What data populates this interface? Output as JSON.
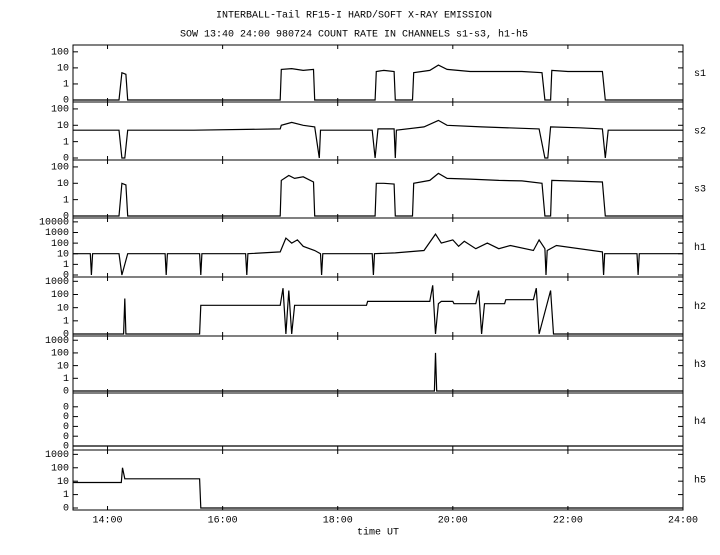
{
  "chart_data": [
    {
      "type": "line",
      "title": "INTERBALL-Tail RF15-I HARD/SOFT X-RAY EMISSION",
      "subtitle": "SOW 13:40 24:00 980724  COUNT RATE IN CHANNELS s1-s3, h1-h5",
      "name": "s1",
      "log": true,
      "color": "#000000",
      "xlim": [
        13.4,
        24
      ],
      "ylim": [
        0,
        200
      ],
      "yticks": [
        0,
        1,
        10,
        100
      ],
      "x": [
        13.4,
        14.2,
        14.25,
        14.32,
        14.35,
        17.0,
        17.02,
        17.2,
        17.4,
        17.58,
        17.6,
        18.65,
        18.67,
        18.8,
        18.98,
        19.0,
        19.3,
        19.32,
        19.6,
        19.75,
        19.9,
        20.3,
        20.8,
        21.2,
        21.55,
        21.6,
        21.7,
        21.72,
        22.0,
        22.6,
        22.65,
        24.0
      ],
      "values": [
        0,
        0,
        5,
        4,
        0,
        0,
        8,
        9,
        7,
        8,
        0,
        0,
        6,
        7,
        6,
        0,
        0,
        5,
        7,
        15,
        8,
        6,
        6,
        6,
        5,
        0,
        0,
        7,
        6,
        6,
        0,
        0
      ]
    },
    {
      "type": "line",
      "name": "s2",
      "log": true,
      "color": "#000000",
      "xlim": [
        13.4,
        24
      ],
      "ylim": [
        0,
        200
      ],
      "yticks": [
        0,
        1,
        10,
        100
      ],
      "x": [
        13.4,
        14.2,
        14.25,
        14.3,
        14.35,
        15.5,
        17.0,
        17.02,
        17.2,
        17.4,
        17.6,
        17.68,
        17.7,
        17.72,
        18.6,
        18.65,
        18.7,
        18.98,
        19.0,
        19.02,
        19.5,
        19.75,
        19.9,
        20.5,
        21.5,
        21.6,
        21.65,
        21.7,
        22.2,
        22.6,
        22.65,
        22.7,
        24.0
      ],
      "values": [
        5,
        5,
        0,
        0,
        5,
        5,
        6,
        10,
        15,
        10,
        8,
        0,
        5,
        5,
        5,
        0,
        6,
        6,
        0,
        5,
        8,
        20,
        10,
        8,
        6,
        0,
        0,
        8,
        7,
        6,
        0,
        5,
        5
      ]
    },
    {
      "type": "line",
      "name": "s3",
      "log": true,
      "color": "#000000",
      "xlim": [
        13.4,
        24
      ],
      "ylim": [
        0,
        200
      ],
      "yticks": [
        0,
        1,
        10,
        100
      ],
      "x": [
        13.4,
        14.2,
        14.25,
        14.32,
        14.35,
        17.0,
        17.02,
        17.15,
        17.25,
        17.4,
        17.58,
        17.6,
        18.65,
        18.67,
        18.8,
        18.98,
        19.0,
        19.3,
        19.32,
        19.6,
        19.75,
        19.9,
        20.3,
        20.8,
        21.2,
        21.55,
        21.6,
        21.7,
        21.72,
        22.0,
        22.6,
        22.65,
        24.0
      ],
      "values": [
        0,
        0,
        10,
        8,
        0,
        0,
        15,
        30,
        20,
        25,
        12,
        0,
        0,
        10,
        10,
        9,
        0,
        0,
        10,
        15,
        40,
        20,
        18,
        15,
        14,
        10,
        0,
        0,
        15,
        14,
        12,
        0,
        0
      ]
    },
    {
      "type": "line",
      "name": "h1",
      "log": true,
      "color": "#000000",
      "xlim": [
        13.4,
        24
      ],
      "ylim": [
        0,
        15000
      ],
      "yticks": [
        0,
        1,
        10,
        100,
        1000,
        10000
      ],
      "x": [
        13.4,
        13.7,
        13.72,
        13.74,
        14.2,
        14.25,
        14.35,
        14.8,
        15.0,
        15.02,
        15.04,
        15.6,
        15.62,
        15.64,
        16.4,
        16.42,
        16.44,
        17.0,
        17.1,
        17.2,
        17.3,
        17.4,
        17.6,
        17.7,
        17.72,
        17.74,
        18.6,
        18.62,
        18.64,
        19.0,
        19.5,
        19.7,
        19.8,
        20.0,
        20.1,
        20.2,
        20.4,
        20.6,
        20.8,
        21.0,
        21.4,
        21.5,
        21.6,
        21.62,
        21.64,
        21.8,
        22.6,
        22.62,
        22.64,
        23.2,
        23.22,
        23.24,
        24.0
      ],
      "values": [
        10,
        10,
        0,
        10,
        10,
        0,
        10,
        10,
        10,
        0,
        10,
        10,
        0,
        10,
        10,
        0,
        10,
        15,
        300,
        100,
        200,
        50,
        20,
        10,
        0,
        10,
        10,
        0,
        10,
        12,
        20,
        700,
        100,
        200,
        50,
        150,
        30,
        100,
        30,
        60,
        20,
        200,
        30,
        0,
        20,
        60,
        15,
        0,
        10,
        10,
        0,
        10,
        10
      ]
    },
    {
      "type": "line",
      "name": "h2",
      "log": true,
      "color": "#000000",
      "xlim": [
        13.4,
        24
      ],
      "ylim": [
        0,
        1500
      ],
      "yticks": [
        0,
        1,
        10,
        100,
        1000
      ],
      "x": [
        13.4,
        14.28,
        14.3,
        14.32,
        15.6,
        15.62,
        17.0,
        17.05,
        17.1,
        17.15,
        17.2,
        17.25,
        18.5,
        18.52,
        19.6,
        19.65,
        19.7,
        19.75,
        19.8,
        20.0,
        20.02,
        20.4,
        20.45,
        20.5,
        20.55,
        20.9,
        20.92,
        21.4,
        21.45,
        21.5,
        21.7,
        21.75,
        21.8,
        24.0
      ],
      "values": [
        0,
        0,
        50,
        0,
        0,
        15,
        15,
        300,
        0,
        200,
        0,
        15,
        15,
        30,
        30,
        500,
        0,
        20,
        30,
        30,
        20,
        20,
        200,
        0,
        20,
        20,
        40,
        40,
        300,
        0,
        200,
        0,
        0,
        0
      ]
    },
    {
      "type": "line",
      "name": "h3",
      "log": true,
      "color": "#000000",
      "xlim": [
        13.4,
        24
      ],
      "ylim": [
        0,
        1500
      ],
      "yticks": [
        0,
        1,
        10,
        100,
        1000
      ],
      "x": [
        13.4,
        19.68,
        19.7,
        19.72,
        24.0
      ],
      "values": [
        0,
        0,
        100,
        0,
        0
      ]
    },
    {
      "type": "line",
      "name": "h4",
      "log": false,
      "color": "#000000",
      "xlim": [
        13.4,
        24
      ],
      "ylim": [
        0,
        0.5
      ],
      "yticks": [
        {
          "value": 0,
          "label": "0"
        },
        {
          "value": 0.1,
          "label": "0"
        },
        {
          "value": 0.2,
          "label": "0"
        },
        {
          "value": 0.3,
          "label": "0"
        },
        {
          "value": 0.4,
          "label": "0"
        }
      ],
      "x": [
        13.4,
        24.0
      ],
      "values": [
        0,
        0
      ]
    },
    {
      "type": "line",
      "name": "h5",
      "log": true,
      "color": "#000000",
      "xlim": [
        13.4,
        24
      ],
      "ylim": [
        0,
        1500
      ],
      "yticks": [
        0,
        1,
        10,
        100,
        1000
      ],
      "x": [
        13.4,
        14.24,
        14.26,
        14.3,
        15.6,
        15.62,
        24.0
      ],
      "values": [
        8,
        8,
        100,
        15,
        15,
        0,
        0
      ],
      "xlabel": "time UT",
      "xticks": [
        {
          "value": 14,
          "label": "14:00"
        },
        {
          "value": 16,
          "label": "16:00"
        },
        {
          "value": 18,
          "label": "18:00"
        },
        {
          "value": 20,
          "label": "20:00"
        },
        {
          "value": 22,
          "label": "22:00"
        },
        {
          "value": 24,
          "label": "24:00"
        }
      ]
    }
  ]
}
